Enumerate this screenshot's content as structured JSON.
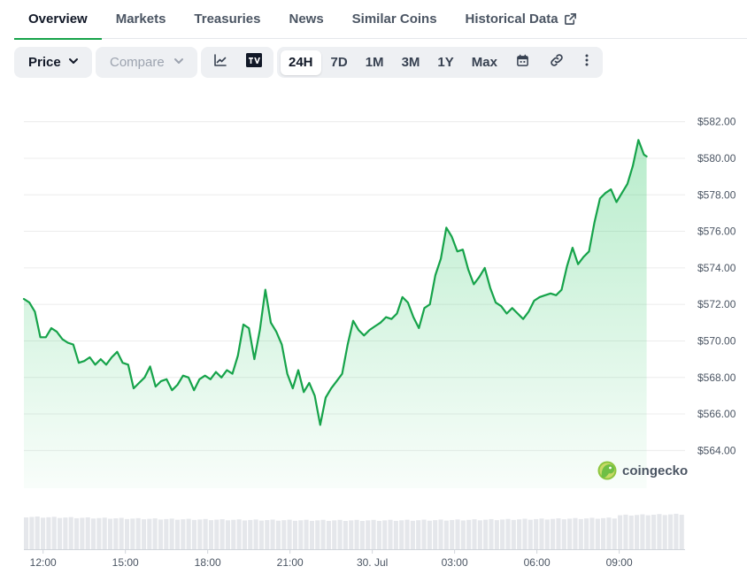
{
  "tabs": [
    {
      "label": "Overview",
      "active": true
    },
    {
      "label": "Markets"
    },
    {
      "label": "Treasuries"
    },
    {
      "label": "News"
    },
    {
      "label": "Similar Coins"
    },
    {
      "label": "Historical Data",
      "external": true
    }
  ],
  "toolbar": {
    "price_label": "Price",
    "compare_label": "Compare",
    "ranges": [
      "24H",
      "7D",
      "1M",
      "3M",
      "1Y",
      "Max"
    ],
    "active_range": "24H",
    "icons": [
      "line-chart-icon",
      "tradingview-icon",
      "calendar-icon",
      "link-icon",
      "more-vertical-icon"
    ]
  },
  "watermark": "coingecko",
  "colors": {
    "line": "#16a34a",
    "fill": "#22c55e",
    "accent": "#16a34a",
    "volume": "#e5e7eb"
  },
  "chart_data": {
    "type": "area",
    "y_unit": "USD",
    "ylim": [
      563.0,
      583.0
    ],
    "y_ticks": [
      {
        "value": 582,
        "label": "$582.00"
      },
      {
        "value": 580,
        "label": "$580.00"
      },
      {
        "value": 578,
        "label": "$578.00"
      },
      {
        "value": 576,
        "label": "$576.00"
      },
      {
        "value": 574,
        "label": "$574.00"
      },
      {
        "value": 572,
        "label": "$572.00"
      },
      {
        "value": 570,
        "label": "$570.00"
      },
      {
        "value": 568,
        "label": "$568.00"
      },
      {
        "value": 566,
        "label": "$566.00"
      },
      {
        "value": 564,
        "label": "$564.00"
      }
    ],
    "x_ticks": [
      {
        "hour": 0.0,
        "label": "12:00"
      },
      {
        "hour": 3.0,
        "label": "15:00"
      },
      {
        "hour": 6.0,
        "label": "18:00"
      },
      {
        "hour": 9.0,
        "label": "21:00"
      },
      {
        "hour": 12.0,
        "label": "30. Jul"
      },
      {
        "hour": 15.0,
        "label": "03:00"
      },
      {
        "hour": 18.0,
        "label": "06:00"
      },
      {
        "hour": 21.0,
        "label": "09:00"
      }
    ],
    "x_range_hours": [
      -0.7,
      23.4
    ],
    "grid": true,
    "series": [
      {
        "values": [
          [
            -0.7,
            572.3
          ],
          [
            -0.5,
            572.1
          ],
          [
            -0.3,
            571.6
          ],
          [
            -0.1,
            570.2
          ],
          [
            0.1,
            570.2
          ],
          [
            0.3,
            570.7
          ],
          [
            0.5,
            570.5
          ],
          [
            0.7,
            570.1
          ],
          [
            0.9,
            569.9
          ],
          [
            1.1,
            569.8
          ],
          [
            1.3,
            568.8
          ],
          [
            1.5,
            568.9
          ],
          [
            1.7,
            569.1
          ],
          [
            1.9,
            568.7
          ],
          [
            2.1,
            569.0
          ],
          [
            2.3,
            568.7
          ],
          [
            2.5,
            569.1
          ],
          [
            2.7,
            569.4
          ],
          [
            2.9,
            568.8
          ],
          [
            3.1,
            568.7
          ],
          [
            3.3,
            567.4
          ],
          [
            3.5,
            567.7
          ],
          [
            3.7,
            568.0
          ],
          [
            3.9,
            568.6
          ],
          [
            4.1,
            567.5
          ],
          [
            4.3,
            567.8
          ],
          [
            4.5,
            567.9
          ],
          [
            4.7,
            567.3
          ],
          [
            4.9,
            567.6
          ],
          [
            5.1,
            568.1
          ],
          [
            5.3,
            568.0
          ],
          [
            5.5,
            567.3
          ],
          [
            5.7,
            567.9
          ],
          [
            5.9,
            568.1
          ],
          [
            6.1,
            567.9
          ],
          [
            6.3,
            568.3
          ],
          [
            6.5,
            568.0
          ],
          [
            6.7,
            568.4
          ],
          [
            6.9,
            568.2
          ],
          [
            7.1,
            569.2
          ],
          [
            7.3,
            570.9
          ],
          [
            7.5,
            570.7
          ],
          [
            7.7,
            569.0
          ],
          [
            7.9,
            570.6
          ],
          [
            8.1,
            572.8
          ],
          [
            8.3,
            571.0
          ],
          [
            8.5,
            570.5
          ],
          [
            8.7,
            569.8
          ],
          [
            8.9,
            568.2
          ],
          [
            9.1,
            567.4
          ],
          [
            9.3,
            568.4
          ],
          [
            9.5,
            567.2
          ],
          [
            9.7,
            567.7
          ],
          [
            9.9,
            567.0
          ],
          [
            10.1,
            565.4
          ],
          [
            10.3,
            566.9
          ],
          [
            10.5,
            567.4
          ],
          [
            10.7,
            567.8
          ],
          [
            10.9,
            568.2
          ],
          [
            11.1,
            569.8
          ],
          [
            11.3,
            571.1
          ],
          [
            11.5,
            570.6
          ],
          [
            11.7,
            570.3
          ],
          [
            11.9,
            570.6
          ],
          [
            12.1,
            570.8
          ],
          [
            12.3,
            571.0
          ],
          [
            12.5,
            571.3
          ],
          [
            12.7,
            571.2
          ],
          [
            12.9,
            571.5
          ],
          [
            13.1,
            572.4
          ],
          [
            13.3,
            572.1
          ],
          [
            13.5,
            571.3
          ],
          [
            13.7,
            570.7
          ],
          [
            13.9,
            571.8
          ],
          [
            14.1,
            572.0
          ],
          [
            14.3,
            573.6
          ],
          [
            14.5,
            574.5
          ],
          [
            14.7,
            576.2
          ],
          [
            14.9,
            575.7
          ],
          [
            15.1,
            574.9
          ],
          [
            15.3,
            575.0
          ],
          [
            15.5,
            573.9
          ],
          [
            15.7,
            573.1
          ],
          [
            15.9,
            573.5
          ],
          [
            16.1,
            574.0
          ],
          [
            16.3,
            572.9
          ],
          [
            16.5,
            572.1
          ],
          [
            16.7,
            571.9
          ],
          [
            16.9,
            571.5
          ],
          [
            17.1,
            571.8
          ],
          [
            17.3,
            571.5
          ],
          [
            17.5,
            571.2
          ],
          [
            17.7,
            571.6
          ],
          [
            17.9,
            572.2
          ],
          [
            18.1,
            572.4
          ],
          [
            18.3,
            572.5
          ],
          [
            18.5,
            572.6
          ],
          [
            18.7,
            572.5
          ],
          [
            18.9,
            572.8
          ],
          [
            19.1,
            574.1
          ],
          [
            19.3,
            575.1
          ],
          [
            19.5,
            574.2
          ],
          [
            19.7,
            574.6
          ],
          [
            19.9,
            574.9
          ],
          [
            20.1,
            576.5
          ],
          [
            20.3,
            577.8
          ],
          [
            20.5,
            578.1
          ],
          [
            20.7,
            578.3
          ],
          [
            20.9,
            577.6
          ],
          [
            21.1,
            578.1
          ],
          [
            21.3,
            578.6
          ],
          [
            21.5,
            579.6
          ],
          [
            21.7,
            581.0
          ],
          [
            21.9,
            580.2
          ],
          [
            22.0,
            580.1
          ]
        ]
      }
    ]
  }
}
